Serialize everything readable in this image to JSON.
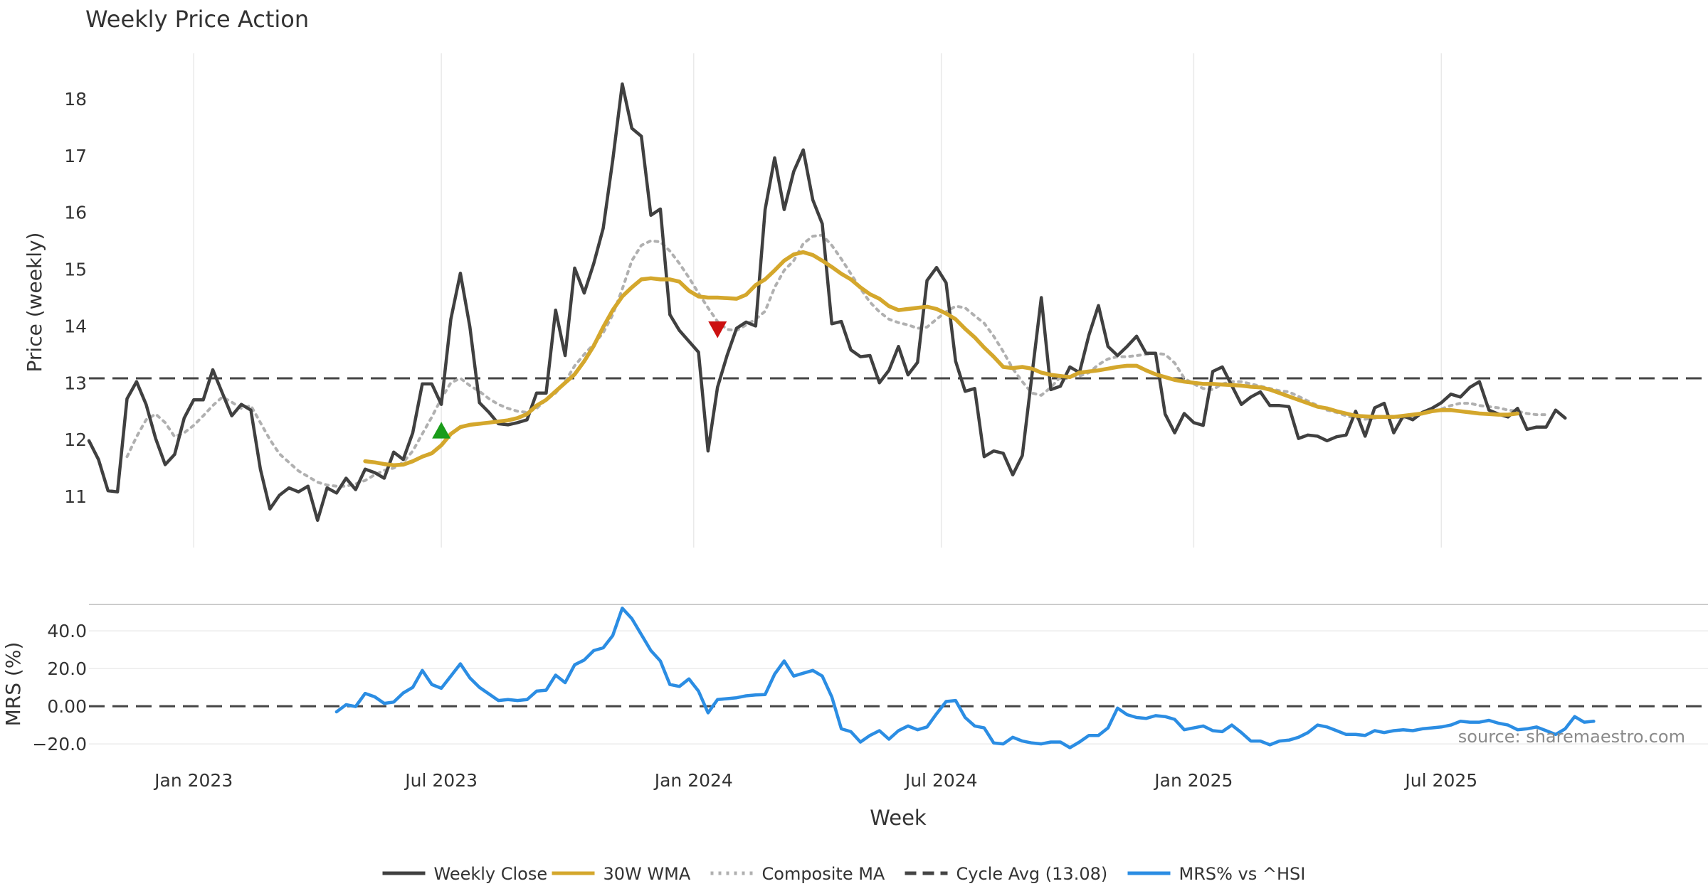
{
  "chart_data": [
    {
      "type": "line",
      "title": "Weekly Price Action",
      "ylabel": "Price (weekly)",
      "xlabel": "Week",
      "ylim": [
        10.1,
        18.8
      ],
      "yticks": [
        11,
        12,
        13,
        14,
        15,
        16,
        17,
        18
      ],
      "x_start": "2022-10-14",
      "x_step": "1 week",
      "x_range_weeks": [
        0,
        170
      ],
      "x_ticks": [
        {
          "label": "Jan 2023",
          "week": 11
        },
        {
          "label": "Jul 2023",
          "week": 37
        },
        {
          "label": "Jan 2024",
          "week": 63.5
        },
        {
          "label": "Jul 2024",
          "week": 89.5
        },
        {
          "label": "Jan 2025",
          "week": 116
        },
        {
          "label": "Jul 2025",
          "week": 142
        }
      ],
      "series": [
        {
          "name": "Weekly Close",
          "color": "#404040",
          "style": "solid",
          "start_week": 0,
          "values": [
            11.98,
            11.65,
            11.1,
            11.08,
            12.72,
            13.02,
            12.62,
            12.02,
            11.56,
            11.74,
            12.38,
            12.7,
            12.7,
            13.23,
            12.82,
            12.42,
            12.62,
            12.52,
            11.48,
            10.78,
            11.02,
            11.15,
            11.08,
            11.18,
            10.58,
            11.15,
            11.06,
            11.32,
            11.12,
            11.48,
            11.42,
            11.32,
            11.78,
            11.65,
            12.12,
            12.98,
            12.98,
            12.62,
            14.12,
            14.93,
            13.98,
            12.65,
            12.48,
            12.28,
            12.26,
            12.3,
            12.35,
            12.82,
            12.82,
            14.28,
            13.48,
            15.02,
            14.58,
            15.1,
            15.72,
            16.92,
            18.26,
            17.48,
            17.34,
            15.95,
            16.06,
            14.2,
            13.92,
            13.73,
            13.54,
            11.8,
            12.92,
            13.48,
            13.96,
            14.07,
            14.0,
            16.05,
            16.96,
            16.05,
            16.72,
            17.1,
            16.22,
            15.8,
            14.04,
            14.08,
            13.58,
            13.46,
            13.48,
            13.0,
            13.22,
            13.64,
            13.14,
            13.36,
            14.8,
            15.03,
            14.76,
            13.38,
            12.85,
            12.9,
            11.7,
            11.8,
            11.76,
            11.38,
            11.72,
            13.12,
            14.5,
            12.88,
            12.94,
            13.28,
            13.18,
            13.84,
            14.36,
            13.64,
            13.48,
            13.64,
            13.82,
            13.52,
            13.52,
            12.45,
            12.12,
            12.46,
            12.3,
            12.25,
            13.2,
            13.28,
            12.95,
            12.62,
            12.75,
            12.84,
            12.6,
            12.6,
            12.58,
            12.02,
            12.08,
            12.06,
            11.98,
            12.05,
            12.08,
            12.5,
            12.06,
            12.56,
            12.64,
            12.12,
            12.42,
            12.35,
            12.48,
            12.55,
            12.65,
            12.8,
            12.75,
            12.92,
            13.02,
            12.52,
            12.45,
            12.4,
            12.55,
            12.18,
            12.22,
            12.22,
            12.52,
            12.38
          ]
        },
        {
          "name": "30W WMA",
          "color": "#d4a72c",
          "style": "solid",
          "start_week": 29,
          "values": [
            11.62,
            11.6,
            11.57,
            11.55,
            11.56,
            11.62,
            11.7,
            11.76,
            11.9,
            12.1,
            12.22,
            12.26,
            12.28,
            12.3,
            12.32,
            12.34,
            12.38,
            12.45,
            12.6,
            12.7,
            12.85,
            13.0,
            13.15,
            13.38,
            13.65,
            13.98,
            14.28,
            14.52,
            14.68,
            14.82,
            14.84,
            14.82,
            14.82,
            14.78,
            14.62,
            14.52,
            14.5,
            14.5,
            14.49,
            14.48,
            14.55,
            14.72,
            14.82,
            14.98,
            15.15,
            15.26,
            15.3,
            15.25,
            15.15,
            15.04,
            14.92,
            14.82,
            14.68,
            14.56,
            14.48,
            14.35,
            14.28,
            14.3,
            14.32,
            14.34,
            14.3,
            14.22,
            14.12,
            13.95,
            13.8,
            13.62,
            13.46,
            13.28,
            13.26,
            13.28,
            13.25,
            13.18,
            13.14,
            13.12,
            13.1,
            13.18,
            13.2,
            13.22,
            13.25,
            13.28,
            13.3,
            13.3,
            13.22,
            13.15,
            13.1,
            13.05,
            13.02,
            13.0,
            12.98,
            12.98,
            12.97,
            12.96,
            12.95,
            12.93,
            12.92,
            12.88,
            12.82,
            12.76,
            12.7,
            12.64,
            12.58,
            12.55,
            12.5,
            12.46,
            12.42,
            12.41,
            12.4,
            12.4,
            12.4,
            12.42,
            12.44,
            12.46,
            12.5,
            12.52,
            12.52,
            12.5,
            12.48,
            12.46,
            12.45,
            12.44,
            12.44,
            12.46
          ]
        },
        {
          "name": "Composite MA",
          "color": "#b0b0b0",
          "style": "dotted",
          "start_week": 4,
          "values": [
            11.7,
            12.05,
            12.35,
            12.45,
            12.3,
            12.05,
            12.12,
            12.25,
            12.42,
            12.6,
            12.75,
            12.66,
            12.55,
            12.6,
            12.3,
            12.0,
            11.75,
            11.6,
            11.45,
            11.35,
            11.25,
            11.2,
            11.18,
            11.18,
            11.22,
            11.28,
            11.38,
            11.46,
            11.5,
            11.6,
            11.8,
            12.1,
            12.4,
            12.72,
            13.0,
            13.08,
            12.95,
            12.85,
            12.72,
            12.62,
            12.55,
            12.5,
            12.48,
            12.55,
            12.7,
            12.82,
            13.02,
            13.3,
            13.5,
            13.68,
            13.88,
            14.2,
            14.65,
            15.15,
            15.42,
            15.5,
            15.48,
            15.32,
            15.1,
            14.85,
            14.58,
            14.32,
            14.08,
            13.94,
            13.92,
            14.02,
            14.12,
            14.26,
            14.68,
            14.98,
            15.15,
            15.45,
            15.58,
            15.6,
            15.42,
            15.18,
            14.92,
            14.66,
            14.42,
            14.25,
            14.12,
            14.06,
            14.02,
            13.96,
            13.98,
            14.12,
            14.25,
            14.35,
            14.32,
            14.18,
            14.05,
            13.82,
            13.55,
            13.25,
            13.02,
            12.82,
            12.78,
            12.92,
            13.1,
            13.12,
            13.12,
            13.18,
            13.32,
            13.42,
            13.46,
            13.46,
            13.48,
            13.5,
            13.52,
            13.5,
            13.35,
            13.08,
            12.98,
            12.9,
            12.88,
            12.98,
            13.02,
            13.02,
            12.98,
            12.94,
            12.9,
            12.86,
            12.84,
            12.76,
            12.68,
            12.6,
            12.52,
            12.48,
            12.42,
            12.38,
            12.36,
            12.38,
            12.4,
            12.4,
            12.38,
            12.42,
            12.46,
            12.5,
            12.54,
            12.6,
            12.64,
            12.64,
            12.6,
            12.58,
            12.56,
            12.52,
            12.5,
            12.46,
            12.44,
            12.44
          ]
        },
        {
          "name": "Cycle Avg (13.08)",
          "color": "#444444",
          "style": "dashed",
          "constant": 13.08
        }
      ],
      "markers": [
        {
          "type": "buy",
          "shape": "triangle-up",
          "color": "#1a9c1a",
          "week": 37,
          "value": 12.15
        },
        {
          "type": "sell",
          "shape": "triangle-down",
          "color": "#cc1111",
          "week": 66,
          "value": 13.95
        }
      ]
    },
    {
      "type": "line",
      "ylabel": "MRS (%)",
      "ylim": [
        -26,
        54
      ],
      "yticks": [
        "40.0",
        "20.0",
        "0.00",
        "−20.0"
      ],
      "ytick_values": [
        40,
        20,
        0,
        -20
      ],
      "series": [
        {
          "name": "MRS% vs ^HSI",
          "color": "#2b8de3",
          "style": "solid",
          "start_week": 26,
          "values": [
            -3,
            0.8,
            -0.2,
            6.8,
            5,
            1.5,
            2.2,
            7,
            10,
            19,
            11.5,
            9.5,
            16,
            22.5,
            15,
            10,
            6.5,
            3,
            3.5,
            3,
            3.5,
            8,
            8.5,
            16.5,
            12.5,
            22,
            24.5,
            29.5,
            31,
            37.5,
            52,
            46.5,
            38,
            29.5,
            24,
            11.5,
            10.5,
            14.5,
            8,
            -3.5,
            3.5,
            4,
            4.5,
            5.5,
            6,
            6.2,
            17,
            24,
            16,
            17.5,
            19,
            16,
            5,
            -12,
            -13.5,
            -19,
            -15.5,
            -13,
            -17.5,
            -13,
            -10.5,
            -12.5,
            -11,
            -4,
            2.5,
            3,
            -6,
            -10.5,
            -11.5,
            -19.5,
            -20,
            -16.5,
            -18.5,
            -19.5,
            -20,
            -19,
            -19,
            -22,
            -19,
            -15.5,
            -15.5,
            -11.5,
            -1,
            -4.5,
            -6,
            -6.5,
            -5,
            -5.5,
            -7,
            -12.5,
            -11.5,
            -10.5,
            -13,
            -13.5,
            -10,
            -14,
            -18.5,
            -18.5,
            -20.5,
            -18.5,
            -18,
            -16.5,
            -14,
            -10,
            -11,
            -13,
            -15,
            -15,
            -15.5,
            -13,
            -14,
            -13,
            -12.5,
            -13,
            -12,
            -11.5,
            -11,
            -10,
            -8,
            -8.5,
            -8.5,
            -7.5,
            -9,
            -10,
            -12.5,
            -12,
            -11,
            -13,
            -15,
            -12,
            -5.5,
            -8.5,
            -8
          ]
        },
        {
          "name": "zero line",
          "color": "#444444",
          "style": "dashed",
          "constant": 0,
          "legend": false
        }
      ],
      "annotation": "source: sharemaestro.com"
    }
  ],
  "legend": {
    "placement": "bottom-center",
    "entries": [
      {
        "label": "Weekly Close",
        "color": "#404040",
        "style": "solid"
      },
      {
        "label": "30W WMA",
        "color": "#d4a72c",
        "style": "solid"
      },
      {
        "label": "Composite MA",
        "color": "#b0b0b0",
        "style": "dotted"
      },
      {
        "label": "Cycle Avg (13.08)",
        "color": "#444444",
        "style": "dashed"
      },
      {
        "label": "MRS% vs ^HSI",
        "color": "#2b8de3",
        "style": "solid"
      }
    ]
  }
}
